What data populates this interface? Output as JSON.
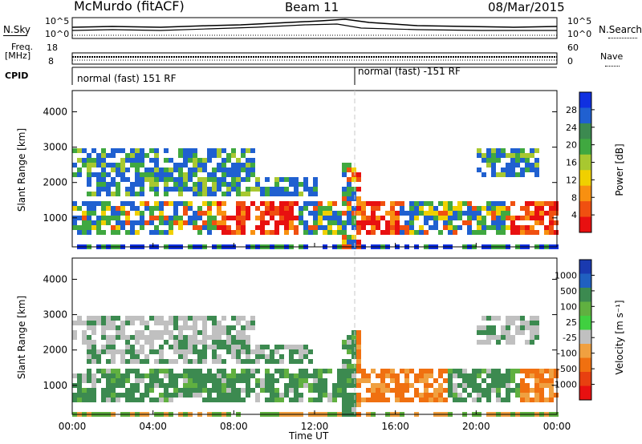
{
  "header": {
    "title": "McMurdo (fitACF)",
    "beam": "Beam 11",
    "date": "08/Mar/2015"
  },
  "top_panel": {
    "left_label": "N.Sky",
    "right_label": "N.Search",
    "left_ticks": [
      "10^5",
      "10^0"
    ],
    "right_ticks": [
      "10^5",
      "10^0"
    ]
  },
  "freq_panel": {
    "left_label_1": "Freq.",
    "left_label_2": "[MHz]",
    "right_label": "Nave",
    "left_ticks": [
      "18",
      "8"
    ],
    "right_ticks": [
      "60",
      "0"
    ]
  },
  "cpid": {
    "label": "CPID",
    "segments": [
      {
        "text": "normal (fast) 151 RF",
        "start": "00:00"
      },
      {
        "text": "normal (fast) -151 RF",
        "start": "14:00"
      }
    ]
  },
  "x_axis": {
    "label": "Time UT",
    "ticks": [
      "00:00",
      "04:00",
      "08:00",
      "12:00",
      "16:00",
      "20:00",
      "00:00"
    ],
    "range_hours": [
      0,
      24
    ]
  },
  "chart_data": [
    {
      "type": "heatmap",
      "ylabel": "Slant Range [km]",
      "yticks": [
        1000,
        2000,
        3000,
        4000
      ],
      "ylim": [
        180,
        4600
      ],
      "xlim": [
        0,
        24
      ],
      "colorbar": {
        "label": "Power [dB]",
        "ticks": [
          "4",
          "8",
          "12",
          "16",
          "20",
          "24",
          "28"
        ],
        "colors": [
          "#1030e0",
          "#2060d0",
          "#3c8a50",
          "#40a840",
          "#a8c830",
          "#f0d000",
          "#f89010",
          "#f05010",
          "#e81010"
        ]
      }
    },
    {
      "type": "heatmap",
      "ylabel": "Slant Range [km]",
      "yticks": [
        1000,
        2000,
        3000,
        4000
      ],
      "ylim": [
        180,
        4600
      ],
      "xlim": [
        0,
        24
      ],
      "colorbar": {
        "label": "Velocity [m s⁻¹]",
        "ticks": [
          "1000",
          "500",
          "100",
          "25",
          "-25",
          "-100",
          "-500",
          "-1000"
        ],
        "colors": [
          "#1a3ab0",
          "#2060c0",
          "#3c8a50",
          "#60b040",
          "#40d040",
          "#c0c0c0",
          "#f0a040",
          "#f07010",
          "#e84010",
          "#e81010"
        ]
      }
    }
  ]
}
